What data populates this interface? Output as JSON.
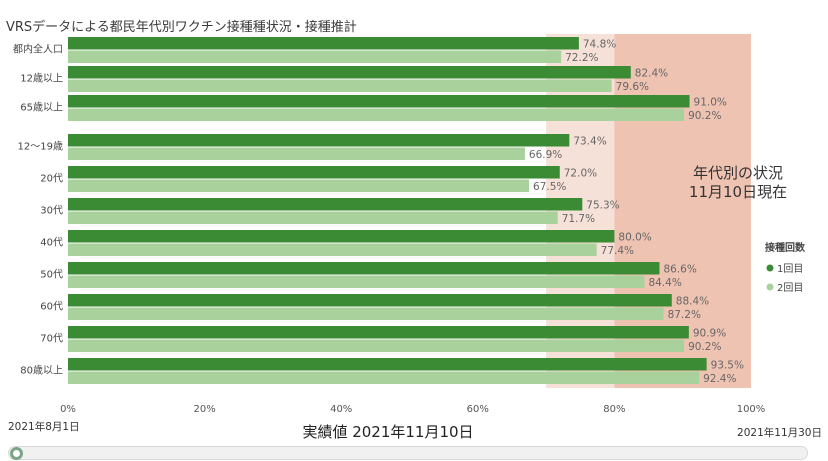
{
  "colors": {
    "dose1": "#3a8b33",
    "dose2": "#a9d19c",
    "band_light": "#f6e1d8",
    "band_dark": "#efc3b2"
  },
  "chart_data": {
    "type": "bar",
    "orientation": "horizontal",
    "title": "VRSデータによる都民年代別ワクチン接種種状況・接種推計",
    "categories": [
      "都内全人口",
      "12歳以上",
      "65歳以上",
      "12〜19歳",
      "20代",
      "30代",
      "40代",
      "50代",
      "60代",
      "70代",
      "80歳以上"
    ],
    "series": [
      {
        "name": "1回目",
        "values": [
          74.8,
          82.4,
          91.0,
          73.4,
          72.0,
          75.3,
          80.0,
          86.6,
          88.4,
          90.9,
          93.5
        ],
        "labels": [
          "74.8%",
          "82.4%",
          "91.0%",
          "73.4%",
          "72.0%",
          "75.3%",
          "80.0%",
          "86.6%",
          "88.4%",
          "90.9%",
          "93.5%"
        ]
      },
      {
        "name": "2回目",
        "values": [
          72.2,
          79.6,
          90.2,
          66.9,
          67.5,
          71.7,
          77.4,
          84.4,
          87.2,
          90.2,
          92.4
        ],
        "labels": [
          "72.2%",
          "79.6%",
          "90.2%",
          "66.9%",
          "67.5%",
          "71.7%",
          "77.4%",
          "84.4%",
          "87.2%",
          "90.2%",
          "92.4%"
        ]
      }
    ],
    "x_ticks": [
      "0%",
      "20%",
      "40%",
      "60%",
      "80%",
      "100%"
    ],
    "xlim": [
      0,
      100
    ],
    "shaded_bands": [
      {
        "from": 70,
        "to": 80,
        "tone": "light"
      },
      {
        "from": 80,
        "to": 100,
        "tone": "dark"
      }
    ],
    "annotation": [
      "年代別の状況",
      "11月10日現在"
    ],
    "legend": {
      "title": "接種回数",
      "position": "right",
      "items": [
        "1回目",
        "2回目"
      ]
    },
    "grid": false
  },
  "footer": {
    "start_date": "2021年8月1日",
    "current_label": "実績値  2021年11月10日",
    "end_date": "2021年11月30日"
  }
}
